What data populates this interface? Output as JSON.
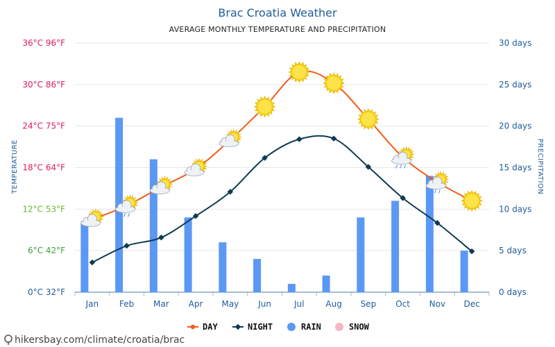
{
  "title": "Brac Croatia Weather",
  "subtitle": "AVERAGE MONTHLY TEMPERATURE AND PRECIPITATION",
  "source": "hikersbay.com/climate/croatia/brac",
  "colors": {
    "day": "#f05a1a",
    "night": "#0d3a52",
    "rain": "#5b98f5",
    "snow": "#f7b6c6",
    "axis_blue": "#1f5c99"
  },
  "chart_data": {
    "type": "line",
    "categories": [
      "Jan",
      "Feb",
      "Mar",
      "Apr",
      "May",
      "Jun",
      "Jul",
      "Aug",
      "Sep",
      "Oct",
      "Nov",
      "Dec"
    ],
    "series": [
      {
        "name": "DAY",
        "type": "line",
        "axis": "temperature",
        "values": [
          10.5,
          12.5,
          15.2,
          17.8,
          22.0,
          26.8,
          31.8,
          30.2,
          25.0,
          19.5,
          15.9,
          13.2
        ]
      },
      {
        "name": "NIGHT",
        "type": "line",
        "axis": "temperature",
        "values": [
          4.3,
          6.7,
          7.9,
          11.0,
          14.5,
          19.4,
          22.1,
          22.2,
          18.1,
          13.6,
          10.0,
          5.9
        ]
      },
      {
        "name": "RAIN",
        "type": "bar",
        "axis": "precipitation",
        "values": [
          8.5,
          21,
          16,
          9,
          6,
          4,
          1,
          2,
          9,
          11,
          14,
          5
        ]
      },
      {
        "name": "SNOW",
        "type": "bar",
        "axis": "precipitation",
        "values": [
          0,
          0,
          0,
          0,
          0,
          0,
          0,
          0,
          0,
          0,
          0,
          0
        ]
      }
    ],
    "day_icons": [
      "sun-cloud",
      "sun-cloud-rain",
      "sun-cloud",
      "sun-cloud",
      "sun-cloud",
      "sun",
      "sun",
      "sun",
      "sun",
      "sun-cloud-rain",
      "sun-cloud-rain",
      "sun"
    ],
    "left_axis": {
      "title": "TEMPERATURE",
      "range": [
        0,
        36
      ],
      "ticks": [
        {
          "value": 0,
          "label": "0°C 32°F",
          "color": "#1f5c99"
        },
        {
          "value": 6,
          "label": "6°C 42°F",
          "color": "#3aa03a"
        },
        {
          "value": 12,
          "label": "12°C 53°F",
          "color": "#66b82a"
        },
        {
          "value": 18,
          "label": "18°C 64°F",
          "color": "#e0185c"
        },
        {
          "value": 24,
          "label": "24°C 75°F",
          "color": "#e0185c"
        },
        {
          "value": 30,
          "label": "30°C 86°F",
          "color": "#e0185c"
        },
        {
          "value": 36,
          "label": "36°C 96°F",
          "color": "#e0185c"
        }
      ]
    },
    "right_axis": {
      "title": "PRECIPITATION",
      "range": [
        0,
        30
      ],
      "ticks": [
        {
          "value": 0,
          "label": "0 days"
        },
        {
          "value": 5,
          "label": "5 days"
        },
        {
          "value": 10,
          "label": "10 days"
        },
        {
          "value": 15,
          "label": "15 days"
        },
        {
          "value": 20,
          "label": "20 days"
        },
        {
          "value": 25,
          "label": "25 days"
        },
        {
          "value": 30,
          "label": "30 days"
        }
      ]
    },
    "grid": true,
    "legend": {
      "position": "bottom",
      "items": [
        {
          "name": "DAY",
          "marker": "line-circle"
        },
        {
          "name": "NIGHT",
          "marker": "line-diamond"
        },
        {
          "name": "RAIN",
          "marker": "circle"
        },
        {
          "name": "SNOW",
          "marker": "circle"
        }
      ]
    }
  }
}
